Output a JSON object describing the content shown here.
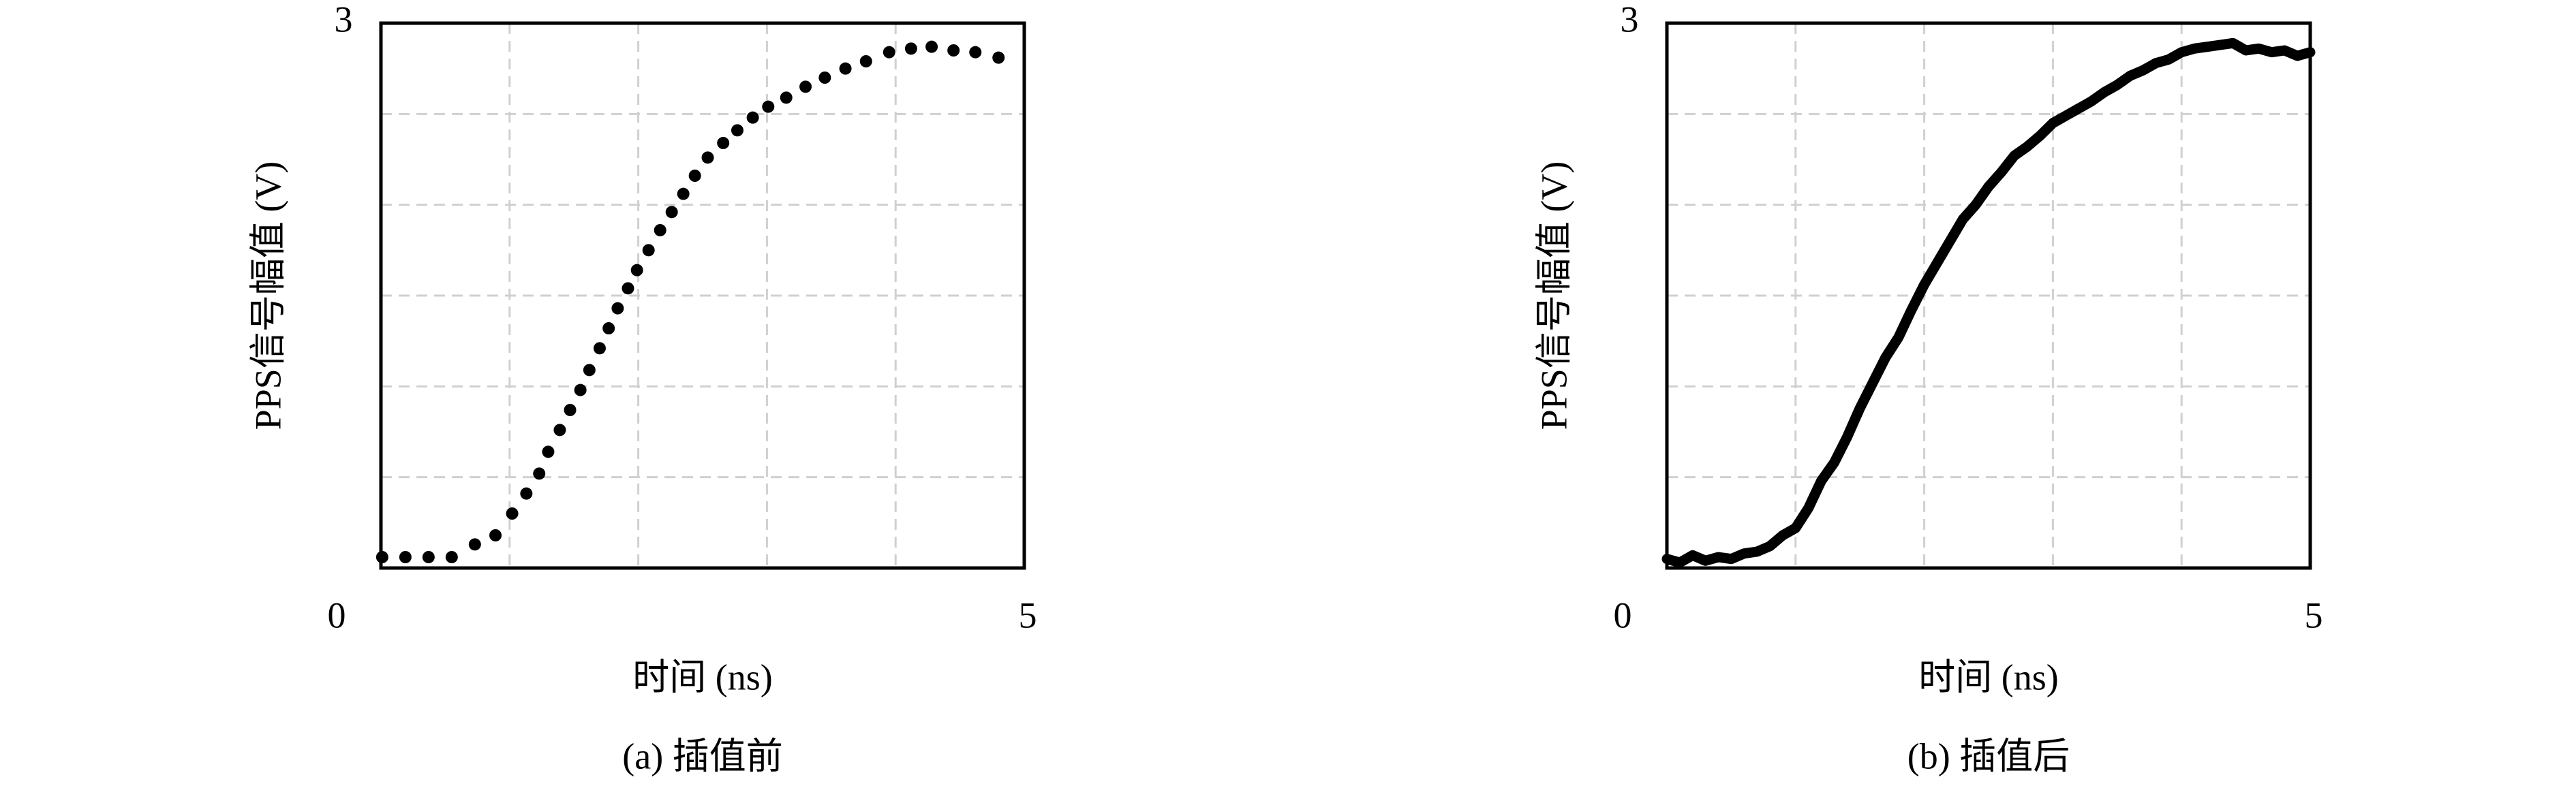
{
  "chart_data": [
    {
      "type": "scatter",
      "caption": "(a) 插值前",
      "xlabel": "时间 (ns)",
      "ylabel": "PPS信号幅值 (V)",
      "xlim": [
        0,
        5
      ],
      "ylim": [
        0,
        3
      ],
      "xticks": [
        0,
        5
      ],
      "yticks": [
        3
      ],
      "xgrid": [
        1,
        2,
        3,
        4
      ],
      "ygrid": [
        0.5,
        1,
        1.5,
        2,
        2.5
      ],
      "grid": true,
      "color": "#000000",
      "x": [
        0.01,
        0.19,
        0.37,
        0.55,
        0.73,
        0.89,
        1.02,
        1.13,
        1.23,
        1.3,
        1.39,
        1.47,
        1.55,
        1.62,
        1.7,
        1.77,
        1.84,
        1.92,
        1.99,
        2.08,
        2.17,
        2.26,
        2.35,
        2.44,
        2.54,
        2.66,
        2.77,
        2.89,
        3.01,
        3.15,
        3.3,
        3.45,
        3.61,
        3.77,
        3.95,
        4.12,
        4.28,
        4.45,
        4.62,
        4.8
      ],
      "values": [
        0.06,
        0.06,
        0.06,
        0.06,
        0.13,
        0.18,
        0.3,
        0.41,
        0.52,
        0.64,
        0.76,
        0.87,
        0.98,
        1.09,
        1.21,
        1.32,
        1.43,
        1.54,
        1.64,
        1.75,
        1.86,
        1.96,
        2.06,
        2.16,
        2.26,
        2.34,
        2.41,
        2.48,
        2.54,
        2.59,
        2.65,
        2.7,
        2.75,
        2.79,
        2.84,
        2.86,
        2.87,
        2.85,
        2.84,
        2.81
      ]
    },
    {
      "type": "line",
      "caption": "(b) 插值后",
      "xlabel": "时间 (ns)",
      "ylabel": "PPS信号幅值 (V)",
      "xlim": [
        0,
        5
      ],
      "ylim": [
        0,
        3
      ],
      "xticks": [
        0,
        5
      ],
      "yticks": [
        3
      ],
      "xgrid": [
        1,
        2,
        3,
        4
      ],
      "ygrid": [
        0.5,
        1,
        1.5,
        2,
        2.5
      ],
      "grid": true,
      "color": "#000000",
      "x": [
        0,
        0.1,
        0.2,
        0.3,
        0.4,
        0.5,
        0.6,
        0.7,
        0.8,
        0.9,
        1.0,
        1.1,
        1.2,
        1.3,
        1.4,
        1.5,
        1.6,
        1.7,
        1.8,
        1.9,
        2.0,
        2.1,
        2.2,
        2.3,
        2.4,
        2.5,
        2.6,
        2.7,
        2.8,
        2.9,
        3.0,
        3.1,
        3.2,
        3.3,
        3.4,
        3.5,
        3.6,
        3.7,
        3.8,
        3.9,
        4.0,
        4.1,
        4.2,
        4.3,
        4.4,
        4.5,
        4.6,
        4.7,
        4.8,
        4.9,
        5.0
      ],
      "values": [
        0.05,
        0.03,
        0.07,
        0.04,
        0.06,
        0.05,
        0.08,
        0.09,
        0.12,
        0.18,
        0.22,
        0.33,
        0.48,
        0.58,
        0.72,
        0.88,
        1.02,
        1.16,
        1.27,
        1.42,
        1.56,
        1.68,
        1.8,
        1.92,
        2.0,
        2.1,
        2.18,
        2.27,
        2.32,
        2.38,
        2.45,
        2.49,
        2.53,
        2.57,
        2.62,
        2.66,
        2.71,
        2.74,
        2.78,
        2.8,
        2.84,
        2.86,
        2.87,
        2.88,
        2.89,
        2.85,
        2.86,
        2.84,
        2.85,
        2.82,
        2.84
      ]
    }
  ]
}
